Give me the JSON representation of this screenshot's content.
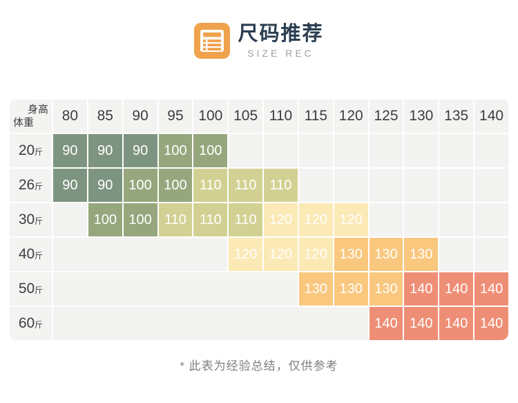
{
  "header": {
    "title": "尺码推荐",
    "subtitle": "SIZE REC",
    "icon": "form-list-icon",
    "icon_color": "#F0A24D",
    "title_color": "#2B3E52",
    "subtitle_color": "#9BA1A6"
  },
  "chart_data": {
    "type": "heatmap",
    "title": "尺码推荐",
    "subtitle": "SIZE REC",
    "xlabel": "身高",
    "ylabel": "体重",
    "weight_unit": "斤",
    "x": [
      "80",
      "85",
      "90",
      "95",
      "100",
      "105",
      "110",
      "115",
      "120",
      "125",
      "130",
      "135",
      "140"
    ],
    "y": [
      "20",
      "26",
      "30",
      "40",
      "50",
      "60"
    ],
    "values": [
      [
        "90",
        "90",
        "90",
        "100",
        "100",
        null,
        null,
        null,
        null,
        null,
        null,
        null,
        null
      ],
      [
        "90",
        "90",
        "100",
        "100",
        "110",
        "110",
        "110",
        null,
        null,
        null,
        null,
        null,
        null
      ],
      [
        null,
        "100",
        "100",
        "110",
        "110",
        "110",
        "120",
        "120",
        "120",
        null,
        null,
        null,
        null
      ],
      [
        null,
        null,
        null,
        null,
        null,
        "120",
        "120",
        "120",
        "130",
        "130",
        "130",
        null,
        null
      ],
      [
        null,
        null,
        null,
        null,
        null,
        null,
        null,
        "130",
        "130",
        "130",
        "140",
        "140",
        "140"
      ],
      [
        null,
        null,
        null,
        null,
        null,
        null,
        null,
        null,
        null,
        "140",
        "140",
        "140",
        "140"
      ]
    ],
    "size_colors": {
      "90": "#7D9480",
      "100": "#96A77D",
      "110": "#D2D193",
      "120": "#FBE9B6",
      "130": "#F9C77E",
      "140": "#EF8E76"
    },
    "empty_cell_color": "#F3F3F1",
    "header_text_color": "#3D3D3D",
    "value_text_color": "#FFFFFF",
    "legend_position": "none",
    "grid": "white-gaps"
  },
  "footnote": {
    "text": "* 此表为经验总结，仅供参考",
    "color": "#7E7E7E"
  }
}
